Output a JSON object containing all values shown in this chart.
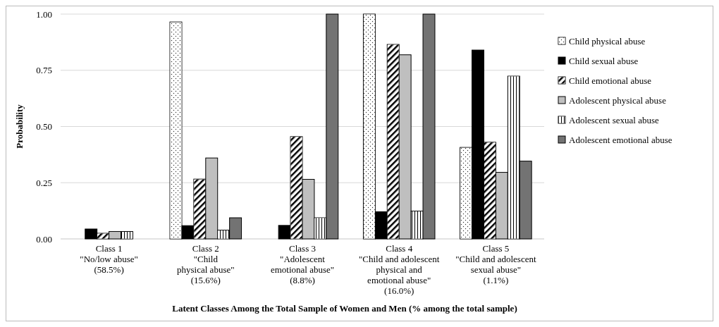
{
  "chart_data": {
    "type": "bar",
    "xlabel": "Latent Classes Among the Total Sample of Women and Men (% among the total sample)",
    "ylabel": "Probability",
    "categories": [
      "Class 1\n\"No/low abuse\"\n(58.5%)",
      "Class 2\n\"Child\nphysical abuse\"\n(15.6%)",
      "Class 3\n\"Adolescent\nemotional abuse\"\n(8.8%)",
      "Class 4\n\"Child and adolescent\nphysical and\nemotional abuse\"\n(16.0%)",
      "Class 5\n\"Child and adolescent\nsexual abuse\"\n(1.1%)"
    ],
    "series": [
      {
        "name": "Child physical abuse",
        "color": "#ffffff",
        "values": [
          0,
          0.965,
          0,
          1.0,
          0.407
        ]
      },
      {
        "name": "Child sexual abuse",
        "color": "#000000",
        "values": [
          0.044,
          0.059,
          0.06,
          0.121,
          0.84
        ]
      },
      {
        "name": "Child emotional abuse",
        "color": "#ffffff",
        "values": [
          0.025,
          0.266,
          0.455,
          0.865,
          0.43
        ]
      },
      {
        "name": "Adolescent physical abuse",
        "color": "#bfbfbf",
        "values": [
          0.033,
          0.36,
          0.265,
          0.819,
          0.296
        ]
      },
      {
        "name": "Adolescent sexual abuse",
        "color": "#ffffff",
        "values": [
          0.033,
          0.039,
          0.094,
          0.124,
          0.724
        ]
      },
      {
        "name": "Adolescent emotional abuse",
        "color": "#737373",
        "values": [
          0,
          0.094,
          1.0,
          1.0,
          0.346
        ]
      }
    ],
    "ylim": [
      0,
      1
    ],
    "yticks": [
      {
        "value": 0,
        "label": "0.00"
      },
      {
        "value": 0.25,
        "label": "0.25"
      },
      {
        "value": 0.5,
        "label": "0.50"
      },
      {
        "value": 0.75,
        "label": "0.75"
      },
      {
        "value": 1,
        "label": "1.00"
      }
    ],
    "grid": "y",
    "legend": "right"
  }
}
